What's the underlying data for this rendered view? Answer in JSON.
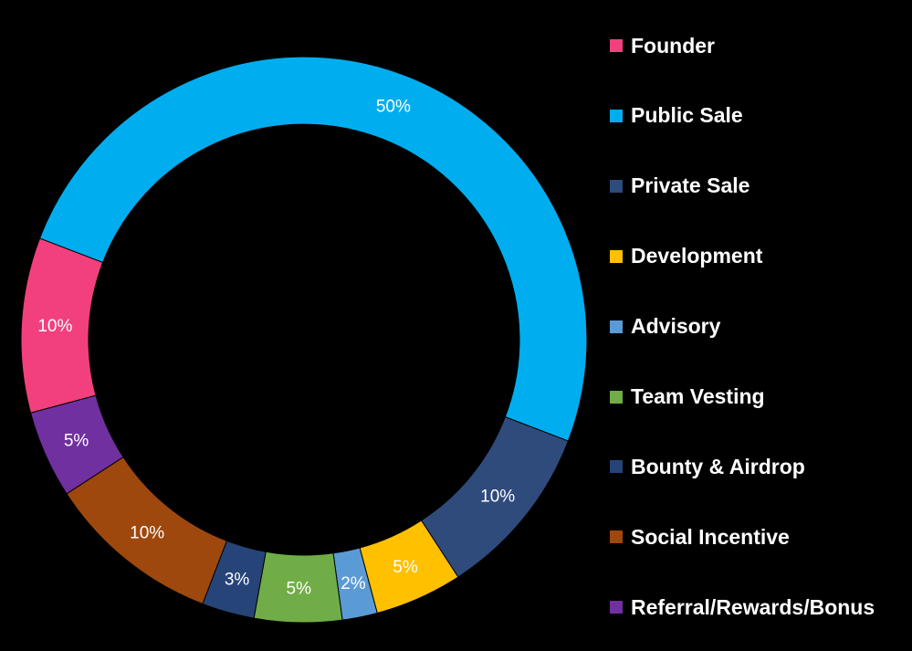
{
  "chart_data": {
    "type": "pie",
    "variant": "donut",
    "title": "",
    "legend_position": "right",
    "slices": [
      {
        "name": "Founder",
        "value": 10,
        "label": "10%",
        "color": "#f2407e"
      },
      {
        "name": "Public Sale",
        "value": 50,
        "label": "50%",
        "color": "#00aeef"
      },
      {
        "name": "Private Sale",
        "value": 10,
        "label": "10%",
        "color": "#2f4b7c"
      },
      {
        "name": "Development",
        "value": 5,
        "label": "5%",
        "color": "#ffc000"
      },
      {
        "name": "Advisory",
        "value": 2,
        "label": "2%",
        "color": "#5b9bd5"
      },
      {
        "name": "Team Vesting",
        "value": 5,
        "label": "5%",
        "color": "#70ad47"
      },
      {
        "name": "Bounty & Airdrop",
        "value": 3,
        "label": "3%",
        "color": "#264478"
      },
      {
        "name": "Social Incentive",
        "value": 10,
        "label": "10%",
        "color": "#9e480e"
      },
      {
        "name": "Referral/Rewards/Bonus",
        "value": 5,
        "label": "5%",
        "color": "#7030a0"
      }
    ]
  }
}
